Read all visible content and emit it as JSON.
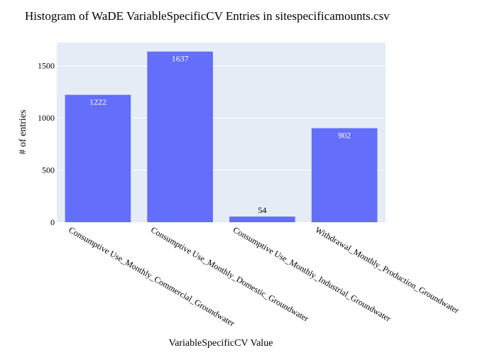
{
  "chart_data": {
    "type": "bar",
    "title": "Histogram of WaDE VariableSpecificCV Entries in sitespecificamounts.csv",
    "xlabel": "VariableSpecificCV Value",
    "ylabel": "# of entries",
    "categories": [
      "Consumptive Use_Monthly_Commercial_Groundwater",
      "Consumptive Use_Monthly_Domestic_Groundwater",
      "Consumptive Use_Monthly_Industrial_Groundwater",
      "Withdrawal_Monthly_Production_Groundwater"
    ],
    "values": [
      1222,
      1637,
      54,
      902
    ],
    "data_labels": [
      "1222",
      "1637",
      "54",
      "902"
    ],
    "yticks": [
      0,
      500,
      1000,
      1500
    ],
    "ytick_labels": [
      "0",
      "500",
      "1000",
      "1500"
    ],
    "ylim": [
      0,
      1723
    ],
    "grid": true,
    "legend": "none",
    "colors": {
      "bar": "#636efa",
      "plot_bg": "#e5ecf6",
      "grid": "#ffffff",
      "text": "#000000",
      "label_inside": "#ffffff"
    }
  }
}
